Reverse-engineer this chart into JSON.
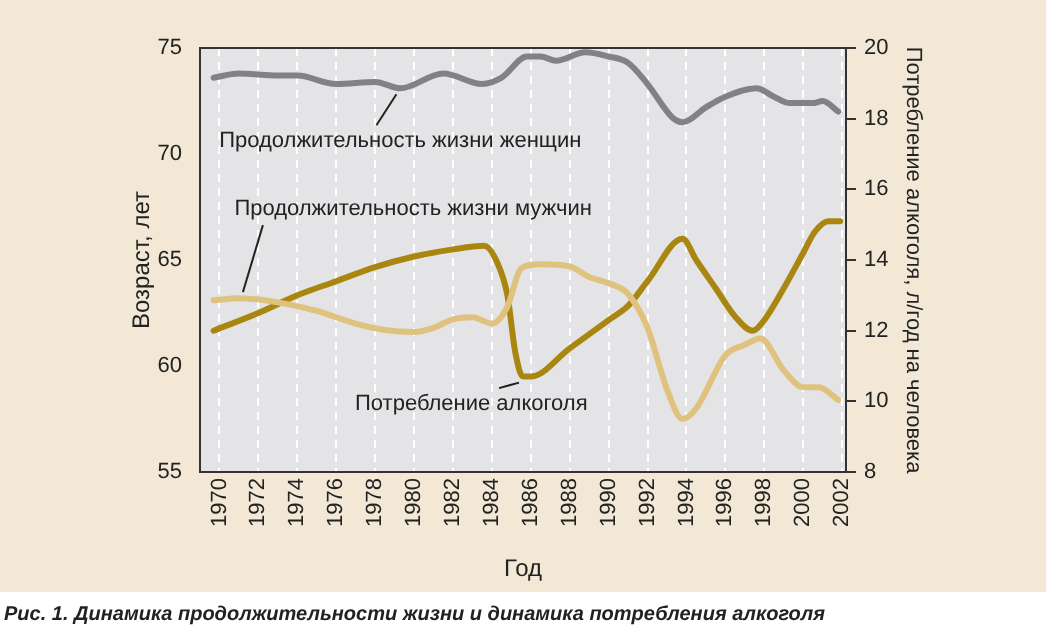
{
  "chart_data": {
    "type": "line",
    "xlabel": "Год",
    "ylabel": "Возраст, лет",
    "y2label": "Потребление алкоголя, л/год на человека",
    "annotations": [
      "Рис. 1. Динамика продолжительности жизни и динамика потребления алкоголя"
    ],
    "xlim": [
      1969,
      2002.2
    ],
    "xticks": [
      1970,
      1972,
      1974,
      1976,
      1978,
      1980,
      1982,
      1984,
      1986,
      1988,
      1990,
      1992,
      1994,
      1996,
      1998,
      2000,
      2002
    ],
    "ylim": [
      55,
      75
    ],
    "yticks": [
      55,
      60,
      65,
      70,
      75
    ],
    "y2lim": [
      8,
      20
    ],
    "y2ticks": [
      8,
      10,
      12,
      14,
      16,
      18,
      20
    ],
    "grid": "x",
    "legend": false,
    "marker": "none",
    "line_style": "solid",
    "series": [
      {
        "name": "Продолжительность жизни женщин",
        "color": "#808285",
        "x": [
          1969.7,
          1971,
          1973,
          1974,
          1976,
          1978,
          1979.3,
          1981.5,
          1983.5,
          1984.5,
          1985.8,
          1986.5,
          1987.3,
          1988.8,
          1990,
          1991,
          1992,
          1993.3,
          1993.8,
          1995,
          1996,
          1997.6,
          1998.5,
          1999.3,
          2000.5,
          2001,
          2001.8
        ],
        "values": [
          73.6,
          73.8,
          73.7,
          73.7,
          73.3,
          73.4,
          73.1,
          73.8,
          73.3,
          73.6,
          74.6,
          74.6,
          74.4,
          74.8,
          74.6,
          74.3,
          73.3,
          71.7,
          71.5,
          72.2,
          72.7,
          73.1,
          72.7,
          72.4,
          72.4,
          72.5,
          72.0
        ]
      },
      {
        "name": "Продолжительность жизни мужчин",
        "color": "#e0c27f",
        "x": [
          1969.7,
          1971,
          1973,
          1975,
          1977,
          1978.5,
          1980,
          1981,
          1982,
          1983,
          1984,
          1984.8,
          1985.5,
          1986.5,
          1988,
          1989,
          1990,
          1991,
          1992,
          1993,
          1993.8,
          1994.5,
          1996,
          1997,
          1997.8,
          1999,
          2000,
          2000.8,
          2001.8
        ],
        "values": [
          63.1,
          63.2,
          63.0,
          62.6,
          62.0,
          61.7,
          61.6,
          61.8,
          62.2,
          62.3,
          62.0,
          62.8,
          64.6,
          64.8,
          64.7,
          64.2,
          63.9,
          63.4,
          61.8,
          58.9,
          57.5,
          58.0,
          60.5,
          61.0,
          61.3,
          59.8,
          59.0,
          59.0,
          58.4
        ]
      },
      {
        "name": "Потребление алкоголя",
        "color": "#a8860f",
        "axis": "y2",
        "x": [
          1969.7,
          1972,
          1974,
          1976,
          1978,
          1980,
          1982,
          1983.6,
          1984.3,
          1984.8,
          1985.2,
          1985.6,
          1986,
          1988,
          1990,
          1991,
          1992,
          1993.8,
          1994.5,
          1995.5,
          1996.5,
          1997.4,
          1998,
          1999,
          2000,
          2000.6,
          2001.3,
          2001.9
        ],
        "values": [
          12.0,
          12.5,
          13.0,
          13.4,
          13.8,
          14.1,
          14.3,
          14.4,
          13.9,
          13.0,
          11.4,
          10.7,
          10.7,
          11.5,
          12.3,
          12.7,
          13.4,
          14.6,
          14.0,
          13.2,
          12.4,
          12.0,
          12.3,
          13.2,
          14.2,
          14.8,
          15.1,
          15.1
        ]
      }
    ]
  }
}
